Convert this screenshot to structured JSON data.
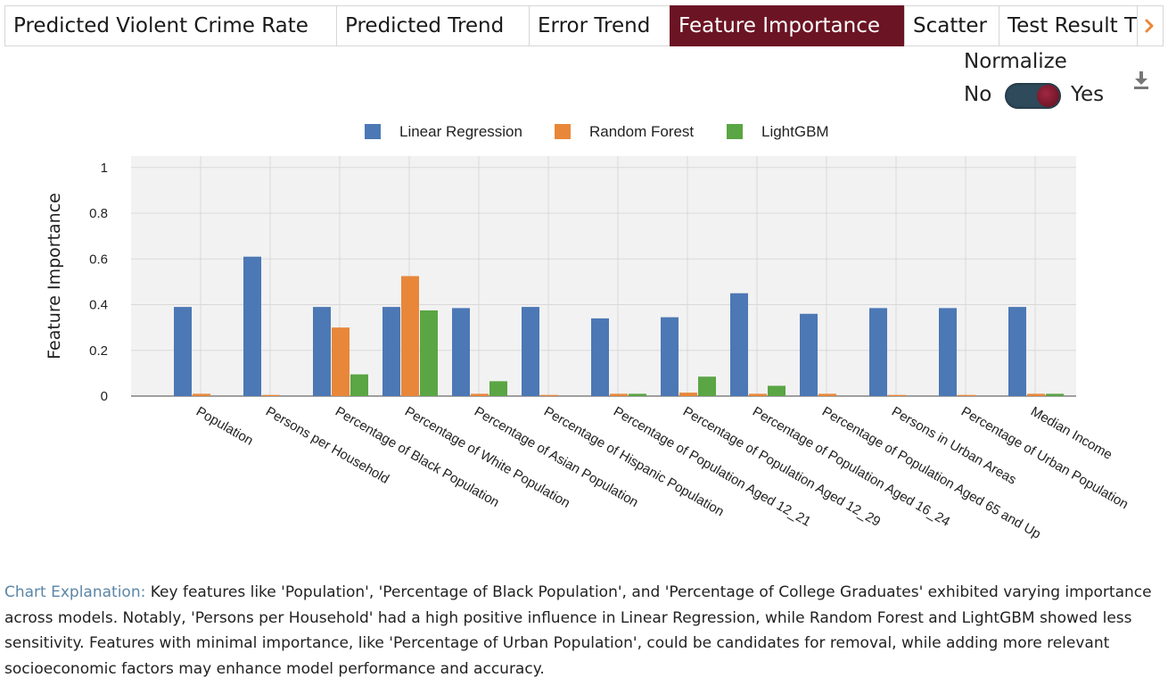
{
  "tabs": [
    {
      "label": "Predicted Violent Crime Rate",
      "active": false
    },
    {
      "label": "Predicted Trend",
      "active": false
    },
    {
      "label": "Error Trend",
      "active": false
    },
    {
      "label": "Feature Importance",
      "active": true
    },
    {
      "label": "Scatter",
      "active": false
    },
    {
      "label": "Test Result T",
      "active": false
    }
  ],
  "tab_next_icon": "chevron-right-icon",
  "normalize": {
    "title": "Normalize",
    "off_label": "No",
    "on_label": "Yes",
    "value": true
  },
  "download_icon": "download-icon",
  "chart_data": {
    "type": "bar",
    "ylabel": "Feature Importance",
    "ylim": [
      0,
      1.05
    ],
    "yticks": [
      0,
      0.2,
      0.4,
      0.6,
      0.8,
      1
    ],
    "yticklabels": [
      "0",
      "0.2",
      "0.4",
      "0.6",
      "0.8",
      "1"
    ],
    "grid": true,
    "legend": "top-center",
    "categories": [
      "Population",
      "Persons per Household",
      "Percentage of Black Population",
      "Percentage of White Population",
      "Percentage of Asian Population",
      "Percentage of Hispanic Population",
      "Percentage of Population Aged 12_21",
      "Percentage of Population Aged 12_29",
      "Percentage of Population Aged 16_24",
      "Percentage of Population Aged 65 and Up",
      "Persons in Urban Areas",
      "Percentage of Urban Population",
      "Median Income"
    ],
    "series": [
      {
        "name": "Linear Regression",
        "color": "#4c78b5",
        "values": [
          0.39,
          0.61,
          0.39,
          0.39,
          0.385,
          0.39,
          0.34,
          0.345,
          0.45,
          0.36,
          0.385,
          0.385,
          0.39
        ]
      },
      {
        "name": "Random Forest",
        "color": "#e8873a",
        "values": [
          0.01,
          0.005,
          0.3,
          0.525,
          0.01,
          0.005,
          0.01,
          0.015,
          0.01,
          0.01,
          0.005,
          0.005,
          0.01
        ]
      },
      {
        "name": "LightGBM",
        "color": "#5aa544",
        "values": [
          0.0,
          0.0,
          0.095,
          0.375,
          0.065,
          0.0,
          0.01,
          0.085,
          0.045,
          0.0,
          0.0,
          0.0,
          0.01
        ]
      }
    ]
  },
  "explanation": {
    "label": "Chart Explanation:",
    "text": " Key features like 'Population', 'Percentage of Black Population', and 'Percentage of College Graduates' exhibited varying importance across models. Notably, 'Persons per Household' had a high positive influence in Linear Regression, while Random Forest and LightGBM showed less sensitivity. Features with minimal importance, like 'Percentage of Urban Population', could be candidates for removal, while adding more relevant socioeconomic factors may enhance model performance and accuracy."
  }
}
